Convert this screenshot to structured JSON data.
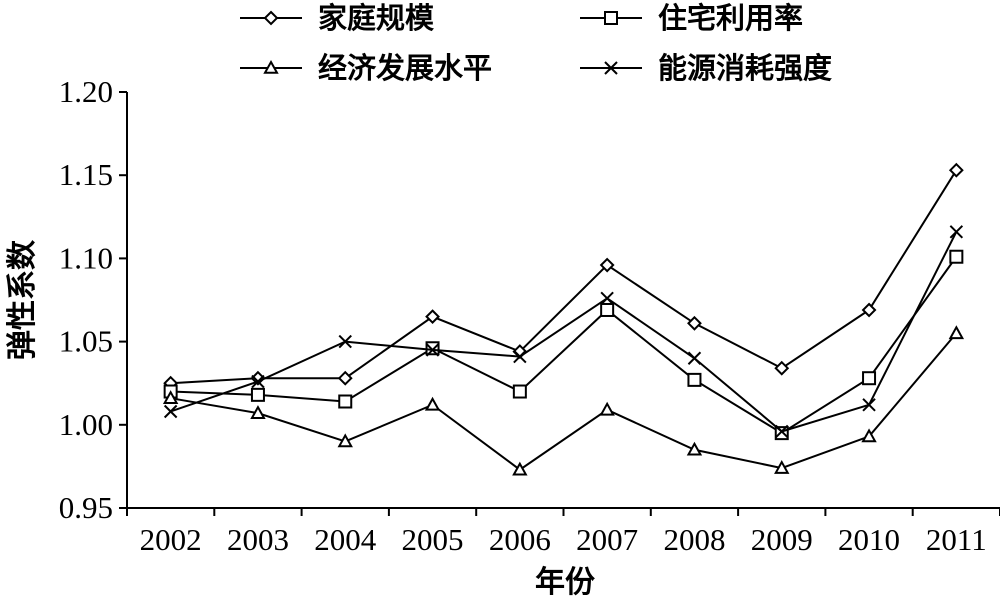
{
  "chart_data": {
    "type": "line",
    "categories": [
      "2002",
      "2003",
      "2004",
      "2005",
      "2006",
      "2007",
      "2008",
      "2009",
      "2010",
      "2011"
    ],
    "series": [
      {
        "name": "家庭规模",
        "marker": "diamond",
        "values": [
          1.025,
          1.028,
          1.028,
          1.065,
          1.044,
          1.096,
          1.061,
          1.034,
          1.069,
          1.153
        ]
      },
      {
        "name": "住宅利用率",
        "marker": "square",
        "values": [
          1.02,
          1.018,
          1.014,
          1.046,
          1.02,
          1.069,
          1.027,
          0.995,
          1.028,
          1.101
        ]
      },
      {
        "name": "经济发展水平",
        "marker": "triangle",
        "values": [
          1.016,
          1.007,
          0.99,
          1.012,
          0.973,
          1.009,
          0.985,
          0.974,
          0.993,
          1.055
        ]
      },
      {
        "name": "能源消耗强度",
        "marker": "x",
        "values": [
          1.008,
          1.026,
          1.05,
          1.045,
          1.041,
          1.076,
          1.04,
          0.996,
          1.012,
          1.116
        ]
      }
    ],
    "xlabel": "年份",
    "ylabel": "弹性系数",
    "ylim": [
      0.95,
      1.2
    ],
    "yticks": [
      "0.95",
      "1.00",
      "1.05",
      "1.10",
      "1.15",
      "1.20"
    ],
    "grid": false,
    "legend_position": "top",
    "color": "#000000"
  }
}
